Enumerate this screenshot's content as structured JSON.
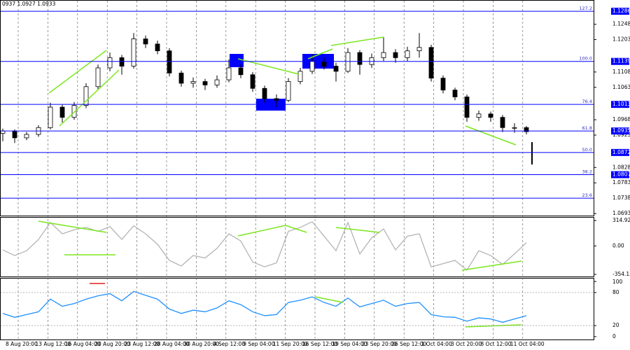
{
  "header": "0937 1.0927 1.0933",
  "chart_data": [
    {
      "type": "candlestick",
      "open": [
        1.0928,
        1.0935,
        1.0915,
        1.0925,
        1.0945,
        1.1005,
        1.0975,
        1.101,
        1.1065,
        1.112,
        1.115,
        1.1125,
        1.1205,
        1.119,
        1.117,
        1.1105,
        1.1075,
        1.108,
        1.107,
        1.1085,
        1.112,
        1.11,
        1.106,
        1.103,
        1.1025,
        1.108,
        1.111,
        1.114,
        1.1125,
        1.111,
        1.1165,
        1.113,
        1.115,
        1.1165,
        1.115,
        1.117,
        1.118,
        1.109,
        1.1055,
        1.1035,
        1.0975,
        1.0985,
        1.0975,
        1.0945,
        1.0945
      ],
      "high": [
        1.0942,
        1.094,
        1.0932,
        1.0952,
        1.1018,
        1.1012,
        1.102,
        1.1075,
        1.113,
        1.1165,
        1.1158,
        1.1222,
        1.1215,
        1.12,
        1.1178,
        1.1112,
        1.1092,
        1.1088,
        1.1098,
        1.1145,
        1.113,
        1.1108,
        1.1068,
        1.1042,
        1.109,
        1.112,
        1.116,
        1.115,
        1.1135,
        1.1178,
        1.1172,
        1.1162,
        1.121,
        1.1175,
        1.1182,
        1.1222,
        1.1188,
        1.1098,
        1.1062,
        1.1042,
        1.0995,
        1.0992,
        1.0982,
        1.0958,
        1.095
      ],
      "low": [
        1.0905,
        1.09,
        1.0908,
        1.0918,
        1.094,
        1.096,
        1.0968,
        1.1002,
        1.1058,
        1.111,
        1.11,
        1.1118,
        1.1178,
        1.116,
        1.1095,
        1.1065,
        1.1062,
        1.1055,
        1.1062,
        1.1078,
        1.109,
        1.105,
        1.1018,
        1.1005,
        1.102,
        1.1072,
        1.1102,
        1.1115,
        1.108,
        1.1105,
        1.11,
        1.112,
        1.114,
        1.1135,
        1.114,
        1.115,
        1.108,
        1.1045,
        1.1025,
        1.0962,
        1.0965,
        1.0962,
        1.0932,
        1.093,
        1.0925
      ],
      "close": [
        1.0935,
        1.0915,
        1.0925,
        1.0945,
        1.1005,
        1.0975,
        1.101,
        1.1065,
        1.112,
        1.115,
        1.1125,
        1.1205,
        1.119,
        1.117,
        1.1105,
        1.1075,
        1.108,
        1.107,
        1.1085,
        1.112,
        1.11,
        1.106,
        1.103,
        1.1025,
        1.108,
        1.111,
        1.114,
        1.1125,
        1.111,
        1.1165,
        1.113,
        1.115,
        1.1165,
        1.115,
        1.117,
        1.118,
        1.109,
        1.1055,
        1.1035,
        1.0975,
        1.0985,
        1.0975,
        1.0945,
        1.0945,
        1.0933
      ],
      "ylim": [
        1.0687,
        1.1317
      ],
      "yticks": [
        1.1248,
        1.1203,
        1.1108,
        1.1063,
        1.0968,
        1.0923,
        1.0828,
        1.0783,
        1.0693
      ],
      "fib_levels": [
        {
          "value": 1.1286,
          "label": "127.2",
          "box": true
        },
        {
          "value": 1.1139,
          "label": "100.0",
          "box": true
        },
        {
          "value": 1.1013,
          "label": "76.4",
          "box": true
        },
        {
          "value": 1.0935,
          "label": "61.8",
          "box": true
        },
        {
          "value": 1.0872,
          "label": "50.0",
          "box": true
        },
        {
          "value": 1.0807,
          "label": "38.2",
          "box": true
        },
        {
          "value": 1.0738,
          "label": "23.6",
          "box": false
        }
      ],
      "color": "#000000",
      "level_color": "#0000ff"
    },
    {
      "type": "line",
      "values": [
        -50,
        -120,
        -60,
        80,
        290,
        150,
        200,
        230,
        180,
        240,
        80,
        250,
        150,
        20,
        -180,
        -250,
        -120,
        -150,
        -30,
        150,
        60,
        -200,
        -260,
        -210,
        180,
        230,
        300,
        120,
        -60,
        290,
        -100,
        100,
        210,
        -50,
        120,
        150,
        -260,
        -220,
        -180,
        -300,
        -60,
        -120,
        -230,
        -100,
        40
      ],
      "color": "#b4b4b4",
      "ylim": [
        -380,
        350
      ],
      "yticks": [
        314.9232,
        {
          "value": 0,
          "label": "0.00"
        },
        -354.159
      ]
    },
    {
      "type": "line",
      "values": [
        42,
        35,
        40,
        45,
        68,
        55,
        60,
        68,
        74,
        78,
        65,
        82,
        75,
        68,
        50,
        42,
        48,
        45,
        52,
        65,
        58,
        45,
        38,
        40,
        62,
        66,
        72,
        62,
        55,
        70,
        54,
        60,
        66,
        55,
        60,
        62,
        40,
        36,
        35,
        28,
        34,
        32,
        26,
        32,
        38
      ],
      "color": "#1e90ff",
      "ylim": [
        -4,
        104
      ],
      "yticks": [
        100,
        80,
        20,
        0
      ],
      "grid_ticks": [
        80,
        20
      ],
      "xtick_labels": [
        "8 Aug 20:00",
        "13 Aug 12:00",
        "16 Aug 04:00",
        "20 Aug 20:00",
        "23 Aug 12:00",
        "28 Aug 04:00",
        "30 Aug 20:00",
        "4 Sep 12:00",
        "9 Sep 04:00",
        "11 Sep 20:00",
        "16 Sep 12:00",
        "19 Sep 04:00",
        "23 Sep 20:00",
        "26 Sep 12:00",
        "1 Oct 04:00",
        "3 Oct 20:00",
        "8 Oct 12:00",
        "11 Oct 04:00"
      ]
    }
  ]
}
